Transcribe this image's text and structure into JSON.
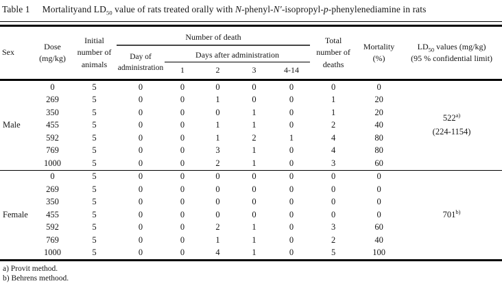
{
  "title": {
    "prefix": "Table 1",
    "part1": "Mortalityand LD",
    "sub1": "50",
    "part2": " value of rats treated orally with ",
    "ital1": "N",
    "part3": "-phenyl-",
    "ital2": "N′",
    "part4": "-isopropyl-",
    "ital3": "p",
    "part5": "-phenylenediamine in rats"
  },
  "header": {
    "sex": "Sex",
    "dose": [
      "Dose",
      "(mg/kg)"
    ],
    "initial": [
      "Initial",
      "number of",
      "animals"
    ],
    "number_of_death": "Number of death",
    "day_of_administration": [
      "Day of",
      "administration"
    ],
    "days_after_administration": "Days after administration",
    "day_cols": [
      "1",
      "2",
      "3",
      "4-14"
    ],
    "total": [
      "Total",
      "number of",
      "deaths"
    ],
    "mortality": [
      "Mortality",
      "(%)"
    ],
    "ld50_prefix": "LD",
    "ld50_sub": "50",
    "ld50_rest": " values (mg/kg)",
    "ld50_line2": "(95 % confidential limit)"
  },
  "groups": [
    {
      "sex": "Male",
      "ld50": {
        "value": "522",
        "marker": "a)",
        "ci": "(224-1154)"
      },
      "rows": [
        {
          "dose": "0",
          "initial": "5",
          "day_admin": "0",
          "d1": "0",
          "d2": "0",
          "d3": "0",
          "d4_14": "0",
          "total": "0",
          "mortality": "0"
        },
        {
          "dose": "269",
          "initial": "5",
          "day_admin": "0",
          "d1": "0",
          "d2": "1",
          "d3": "0",
          "d4_14": "0",
          "total": "1",
          "mortality": "20"
        },
        {
          "dose": "350",
          "initial": "5",
          "day_admin": "0",
          "d1": "0",
          "d2": "0",
          "d3": "1",
          "d4_14": "0",
          "total": "1",
          "mortality": "20"
        },
        {
          "dose": "455",
          "initial": "5",
          "day_admin": "0",
          "d1": "0",
          "d2": "1",
          "d3": "1",
          "d4_14": "0",
          "total": "2",
          "mortality": "40"
        },
        {
          "dose": "592",
          "initial": "5",
          "day_admin": "0",
          "d1": "0",
          "d2": "1",
          "d3": "2",
          "d4_14": "1",
          "total": "4",
          "mortality": "80"
        },
        {
          "dose": "769",
          "initial": "5",
          "day_admin": "0",
          "d1": "0",
          "d2": "3",
          "d3": "1",
          "d4_14": "0",
          "total": "4",
          "mortality": "80"
        },
        {
          "dose": "1000",
          "initial": "5",
          "day_admin": "0",
          "d1": "0",
          "d2": "2",
          "d3": "1",
          "d4_14": "0",
          "total": "3",
          "mortality": "60"
        }
      ]
    },
    {
      "sex": "Female",
      "ld50": {
        "value": "701",
        "marker": "b)",
        "ci": ""
      },
      "rows": [
        {
          "dose": "0",
          "initial": "5",
          "day_admin": "0",
          "d1": "0",
          "d2": "0",
          "d3": "0",
          "d4_14": "0",
          "total": "0",
          "mortality": "0"
        },
        {
          "dose": "269",
          "initial": "5",
          "day_admin": "0",
          "d1": "0",
          "d2": "0",
          "d3": "0",
          "d4_14": "0",
          "total": "0",
          "mortality": "0"
        },
        {
          "dose": "350",
          "initial": "5",
          "day_admin": "0",
          "d1": "0",
          "d2": "0",
          "d3": "0",
          "d4_14": "0",
          "total": "0",
          "mortality": "0"
        },
        {
          "dose": "455",
          "initial": "5",
          "day_admin": "0",
          "d1": "0",
          "d2": "0",
          "d3": "0",
          "d4_14": "0",
          "total": "0",
          "mortality": "0"
        },
        {
          "dose": "592",
          "initial": "5",
          "day_admin": "0",
          "d1": "0",
          "d2": "2",
          "d3": "1",
          "d4_14": "0",
          "total": "3",
          "mortality": "60"
        },
        {
          "dose": "769",
          "initial": "5",
          "day_admin": "0",
          "d1": "0",
          "d2": "1",
          "d3": "1",
          "d4_14": "0",
          "total": "2",
          "mortality": "40"
        },
        {
          "dose": "1000",
          "initial": "5",
          "day_admin": "0",
          "d1": "0",
          "d2": "4",
          "d3": "1",
          "d4_14": "0",
          "total": "5",
          "mortality": "100"
        }
      ]
    }
  ],
  "footnotes": [
    "a) Provit method.",
    "b) Behrens methood."
  ]
}
